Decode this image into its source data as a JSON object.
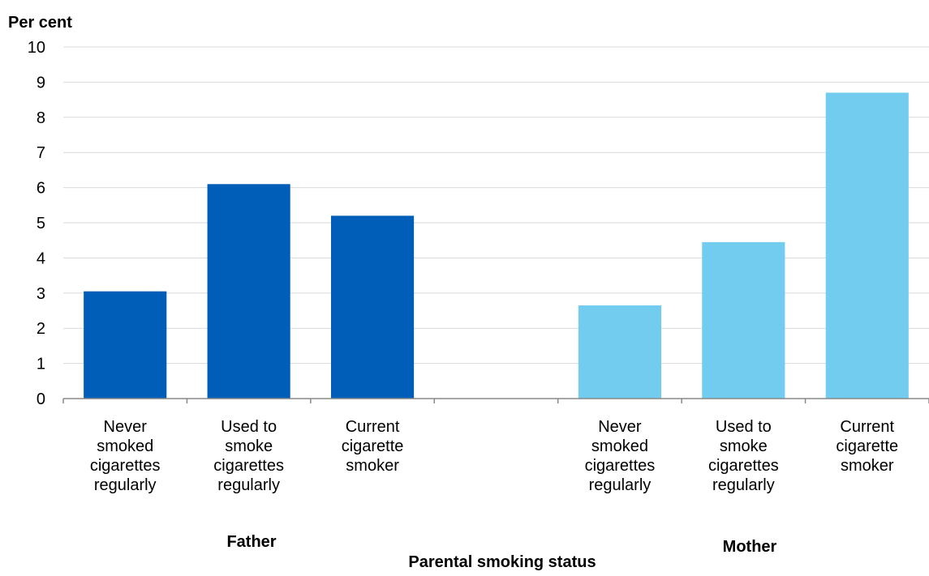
{
  "chart_data": {
    "type": "bar",
    "title": "",
    "ylabel": "Per cent",
    "xlabel": "Parental smoking status",
    "ylim": [
      0,
      10
    ],
    "yticks": [
      0,
      1,
      2,
      3,
      4,
      5,
      6,
      7,
      8,
      9,
      10
    ],
    "grid": true,
    "groups": [
      {
        "name": "Father",
        "color": "#005EB8",
        "categories": [
          [
            "Never",
            "smoked",
            "cigarettes",
            "regularly"
          ],
          [
            "Used to",
            "smoke",
            "cigarettes",
            "regularly"
          ],
          [
            "Current",
            "cigarette",
            "smoker"
          ]
        ],
        "values": [
          3.05,
          6.1,
          5.2
        ]
      },
      {
        "name": "Mother",
        "color": "#71CCEF",
        "categories": [
          [
            "Never",
            "smoked",
            "cigarettes",
            "regularly"
          ],
          [
            "Used to",
            "smoke",
            "cigarettes",
            "regularly"
          ],
          [
            "Current",
            "cigarette",
            "smoker"
          ]
        ],
        "values": [
          2.65,
          4.45,
          8.7
        ]
      }
    ],
    "colors": {
      "gridline": "#D9D9D9",
      "axis": "#888888"
    }
  }
}
